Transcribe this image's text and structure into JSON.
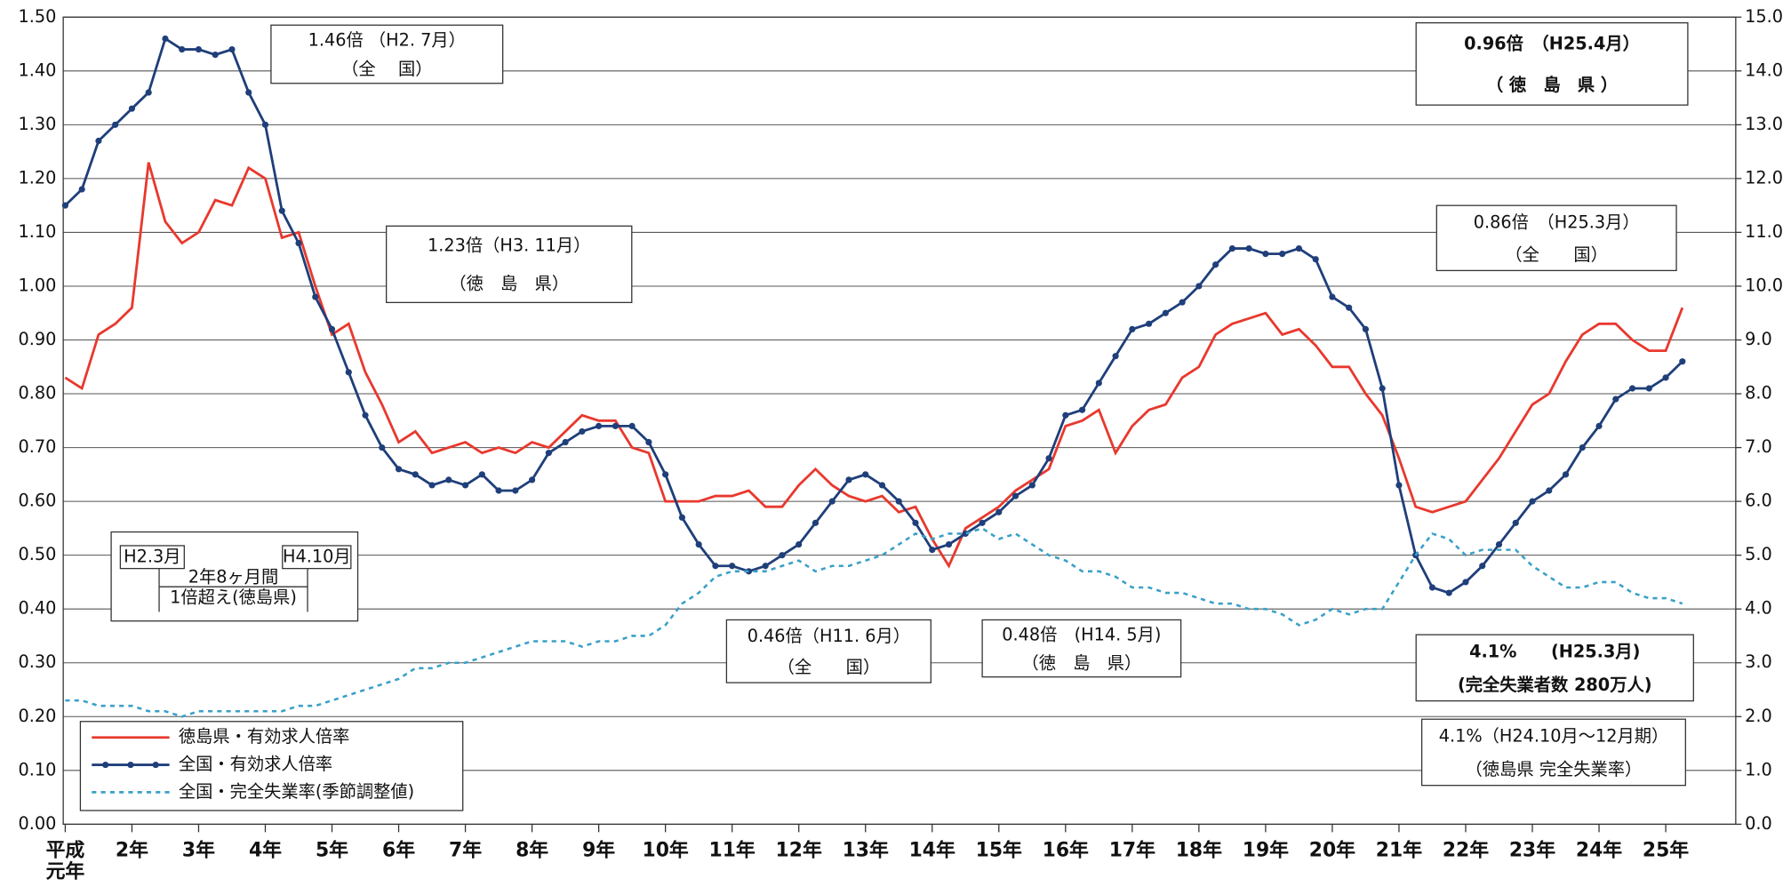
{
  "chart_data": {
    "type": "line",
    "xticks": [
      {
        "value": 1,
        "label": "平成元年"
      },
      {
        "value": 2,
        "label": "2年"
      },
      {
        "value": 3,
        "label": "3年"
      },
      {
        "value": 4,
        "label": "4年"
      },
      {
        "value": 5,
        "label": "5年"
      },
      {
        "value": 6,
        "label": "6年"
      },
      {
        "value": 7,
        "label": "7年"
      },
      {
        "value": 8,
        "label": "8年"
      },
      {
        "value": 9,
        "label": "9年"
      },
      {
        "value": 10,
        "label": "10年"
      },
      {
        "value": 11,
        "label": "11年"
      },
      {
        "value": 12,
        "label": "12年"
      },
      {
        "value": 13,
        "label": "13年"
      },
      {
        "value": 14,
        "label": "14年"
      },
      {
        "value": 15,
        "label": "15年"
      },
      {
        "value": 16,
        "label": "16年"
      },
      {
        "value": 17,
        "label": "17年"
      },
      {
        "value": 18,
        "label": "18年"
      },
      {
        "value": 19,
        "label": "19年"
      },
      {
        "value": 20,
        "label": "20年"
      },
      {
        "value": 21,
        "label": "21年"
      },
      {
        "value": 22,
        "label": "22年"
      },
      {
        "value": 23,
        "label": "23年"
      },
      {
        "value": 24,
        "label": "24年"
      },
      {
        "value": 25,
        "label": "25年"
      }
    ],
    "xlim": [
      0.97,
      26.05
    ],
    "ylim": [
      0,
      1.5
    ],
    "yticks": [
      {
        "value": 0,
        "label": "0.00"
      },
      {
        "value": 0.1,
        "label": "0.10"
      },
      {
        "value": 0.2,
        "label": "0.20"
      },
      {
        "value": 0.3,
        "label": "0.30"
      },
      {
        "value": 0.4,
        "label": "0.40"
      },
      {
        "value": 0.5,
        "label": "0.50"
      },
      {
        "value": 0.6,
        "label": "0.60"
      },
      {
        "value": 0.7,
        "label": "0.70"
      },
      {
        "value": 0.8,
        "label": "0.80"
      },
      {
        "value": 0.9,
        "label": "0.90"
      },
      {
        "value": 1.0,
        "label": "1.00"
      },
      {
        "value": 1.1,
        "label": "1.10"
      },
      {
        "value": 1.2,
        "label": "1.20"
      },
      {
        "value": 1.3,
        "label": "1.30"
      },
      {
        "value": 1.4,
        "label": "1.40"
      },
      {
        "value": 1.5,
        "label": "1.50"
      }
    ],
    "y2lim": [
      0,
      15
    ],
    "y2ticks": [
      {
        "value": 0,
        "label": "0.0"
      },
      {
        "value": 1,
        "label": "1.0"
      },
      {
        "value": 2,
        "label": "2.0"
      },
      {
        "value": 3,
        "label": "3.0"
      },
      {
        "value": 4,
        "label": "4.0"
      },
      {
        "value": 5,
        "label": "5.0"
      },
      {
        "value": 6,
        "label": "6.0"
      },
      {
        "value": 7,
        "label": "7.0"
      },
      {
        "value": 8,
        "label": "8.0"
      },
      {
        "value": 9,
        "label": "9.0"
      },
      {
        "value": 10,
        "label": "10.0"
      },
      {
        "value": 11,
        "label": "11.0"
      },
      {
        "value": 12,
        "label": "12.0"
      },
      {
        "value": 13,
        "label": "13.0"
      },
      {
        "value": 14,
        "label": "14.0"
      },
      {
        "value": 15,
        "label": "15.0"
      }
    ],
    "grid": true,
    "legend": "bottom-left",
    "x": [
      1,
      1.25,
      1.5,
      1.75,
      2,
      2.25,
      2.5,
      2.75,
      3,
      3.25,
      3.5,
      3.75,
      4,
      4.25,
      4.5,
      4.75,
      5,
      5.25,
      5.5,
      5.75,
      6,
      6.25,
      6.5,
      6.75,
      7,
      7.25,
      7.5,
      7.75,
      8,
      8.25,
      8.5,
      8.75,
      9,
      9.25,
      9.5,
      9.75,
      10,
      10.25,
      10.5,
      10.75,
      11,
      11.25,
      11.5,
      11.75,
      12,
      12.25,
      12.5,
      12.75,
      13,
      13.25,
      13.5,
      13.75,
      14,
      14.25,
      14.5,
      14.75,
      15,
      15.25,
      15.5,
      15.75,
      16,
      16.25,
      16.5,
      16.75,
      17,
      17.25,
      17.5,
      17.75,
      18,
      18.25,
      18.5,
      18.75,
      19,
      19.25,
      19.5,
      19.75,
      20,
      20.25,
      20.5,
      20.75,
      21,
      21.25,
      21.5,
      21.75,
      22,
      22.25,
      22.5,
      22.75,
      23,
      23.25,
      23.5,
      23.75,
      24,
      24.25,
      24.5,
      24.75,
      25,
      25.25
    ],
    "series": [
      {
        "name": "徳島県・有効求人倍率",
        "color": "#e8392e",
        "line_style": "solid",
        "markers": false,
        "values": [
          0.83,
          0.81,
          0.91,
          0.93,
          0.96,
          1.23,
          1.12,
          1.08,
          1.1,
          1.16,
          1.15,
          1.22,
          1.2,
          1.09,
          1.1,
          1.0,
          0.91,
          0.93,
          0.84,
          0.78,
          0.71,
          0.73,
          0.69,
          0.7,
          0.71,
          0.69,
          0.7,
          0.69,
          0.71,
          0.7,
          0.73,
          0.76,
          0.75,
          0.75,
          0.7,
          0.69,
          0.6,
          0.6,
          0.6,
          0.61,
          0.61,
          0.62,
          0.59,
          0.59,
          0.63,
          0.66,
          0.63,
          0.61,
          0.6,
          0.61,
          0.58,
          0.59,
          0.53,
          0.48,
          0.55,
          0.57,
          0.59,
          0.62,
          0.64,
          0.66,
          0.74,
          0.75,
          0.77,
          0.69,
          0.74,
          0.77,
          0.78,
          0.83,
          0.85,
          0.91,
          0.93,
          0.94,
          0.95,
          0.91,
          0.92,
          0.89,
          0.85,
          0.85,
          0.8,
          0.76,
          0.68,
          0.59,
          0.58,
          0.59,
          0.6,
          0.64,
          0.68,
          0.73,
          0.78,
          0.8,
          0.86,
          0.91,
          0.93,
          0.93,
          0.9,
          0.88,
          0.88,
          0.96
        ]
      },
      {
        "name": "全国・有効求人倍率",
        "color": "#1f3f7a",
        "line_style": "solid",
        "markers": true,
        "values": [
          1.15,
          1.18,
          1.27,
          1.3,
          1.33,
          1.36,
          1.46,
          1.44,
          1.44,
          1.43,
          1.44,
          1.36,
          1.3,
          1.14,
          1.08,
          0.98,
          0.92,
          0.84,
          0.76,
          0.7,
          0.66,
          0.65,
          0.63,
          0.64,
          0.63,
          0.65,
          0.62,
          0.62,
          0.64,
          0.69,
          0.71,
          0.73,
          0.74,
          0.74,
          0.74,
          0.71,
          0.65,
          0.57,
          0.52,
          0.48,
          0.48,
          0.47,
          0.48,
          0.5,
          0.52,
          0.56,
          0.6,
          0.64,
          0.65,
          0.63,
          0.6,
          0.56,
          0.51,
          0.52,
          0.54,
          0.56,
          0.58,
          0.61,
          0.63,
          0.68,
          0.76,
          0.77,
          0.82,
          0.87,
          0.92,
          0.93,
          0.95,
          0.97,
          1.0,
          1.04,
          1.07,
          1.07,
          1.06,
          1.06,
          1.07,
          1.05,
          0.98,
          0.96,
          0.92,
          0.81,
          0.63,
          0.5,
          0.44,
          0.43,
          0.45,
          0.48,
          0.52,
          0.56,
          0.6,
          0.62,
          0.65,
          0.7,
          0.74,
          0.79,
          0.81,
          0.81,
          0.83,
          0.86
        ]
      },
      {
        "name": "全国・完全失業率(季節調整値)",
        "color": "#3aa0c8",
        "line_style": "dashed",
        "markers": false,
        "axis": "y2",
        "values": [
          2.3,
          2.3,
          2.2,
          2.2,
          2.2,
          2.1,
          2.1,
          2.0,
          2.1,
          2.1,
          2.1,
          2.1,
          2.1,
          2.1,
          2.2,
          2.2,
          2.3,
          2.4,
          2.5,
          2.6,
          2.7,
          2.9,
          2.9,
          3.0,
          3.0,
          3.1,
          3.2,
          3.3,
          3.4,
          3.4,
          3.4,
          3.3,
          3.4,
          3.4,
          3.5,
          3.5,
          3.7,
          4.1,
          4.3,
          4.6,
          4.7,
          4.7,
          4.7,
          4.8,
          4.9,
          4.7,
          4.8,
          4.8,
          4.9,
          5.0,
          5.2,
          5.4,
          5.3,
          5.4,
          5.4,
          5.5,
          5.3,
          5.4,
          5.2,
          5.0,
          4.9,
          4.7,
          4.7,
          4.6,
          4.4,
          4.4,
          4.3,
          4.3,
          4.2,
          4.1,
          4.1,
          4.0,
          4.0,
          3.9,
          3.7,
          3.8,
          4.0,
          3.9,
          4.0,
          4.0,
          4.5,
          5.0,
          5.4,
          5.3,
          5.0,
          5.1,
          5.1,
          5.1,
          4.8,
          4.6,
          4.4,
          4.4,
          4.5,
          4.5,
          4.3,
          4.2,
          4.2,
          4.1
        ]
      }
    ],
    "annotations": [
      {
        "lines": [
          "1.46倍 （H2. 7月）",
          "（全　 国）"
        ]
      },
      {
        "lines": [
          "0.96倍　（H25.4月）",
          "（ 徳　島　県 ）"
        ]
      },
      {
        "lines": [
          "1.23倍（H3. 11月）",
          "（徳　島　県）"
        ]
      },
      {
        "lines": [
          "0.86倍　（H25.3月）",
          "（全　　国）"
        ]
      },
      {
        "lines": [
          "H2.3月",
          "H4.10月",
          "2年8ヶ月間",
          "1倍超え(徳島県)"
        ]
      },
      {
        "lines": [
          "0.46倍（H11. 6月）",
          "（全　　国）"
        ]
      },
      {
        "lines": [
          "0.48倍　(H14. 5月)",
          "（徳　島　県）"
        ]
      },
      {
        "lines": [
          "4.1%　　(H25.3月)",
          "(完全失業者数 280万人)"
        ]
      },
      {
        "lines": [
          "4.1%（H24.10月～12月期）",
          "（徳島県 完全失業率）"
        ]
      }
    ]
  }
}
